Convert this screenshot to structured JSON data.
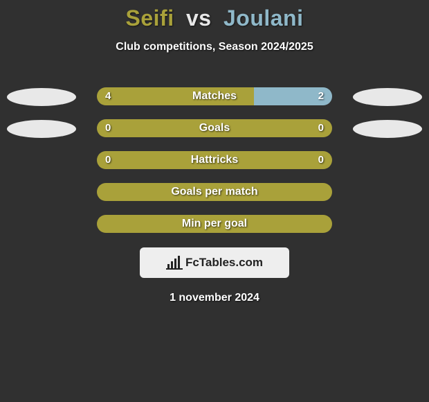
{
  "title": {
    "player1": "Seifi",
    "vs": "vs",
    "player2": "Joulani",
    "player1_color": "#a9a13a",
    "vs_color": "#e8e8e8",
    "player2_color": "#8fb8c9",
    "fontsize": 32
  },
  "subtitle": "Club competitions, Season 2024/2025",
  "background_color": "#303030",
  "ellipse_left_color": "#e8e8e8",
  "ellipse_right_color": "#e8e8e8",
  "rows": [
    {
      "label": "Matches",
      "left_value": "4",
      "right_value": "2",
      "left_num": 4,
      "right_num": 2,
      "left_color": "#a9a13a",
      "right_color": "#8fb8c9",
      "left_pct": 66.7,
      "right_pct": 33.3,
      "show_left_ellipse": true,
      "show_right_ellipse": true,
      "show_values": true
    },
    {
      "label": "Goals",
      "left_value": "0",
      "right_value": "0",
      "left_num": 0,
      "right_num": 0,
      "left_color": "#a9a13a",
      "right_color": "#a9a13a",
      "left_pct": 100,
      "right_pct": 0,
      "show_left_ellipse": true,
      "show_right_ellipse": true,
      "show_values": true
    },
    {
      "label": "Hattricks",
      "left_value": "0",
      "right_value": "0",
      "left_num": 0,
      "right_num": 0,
      "left_color": "#a9a13a",
      "right_color": "#a9a13a",
      "left_pct": 100,
      "right_pct": 0,
      "show_left_ellipse": false,
      "show_right_ellipse": false,
      "show_values": true
    },
    {
      "label": "Goals per match",
      "left_value": "",
      "right_value": "",
      "left_num": 0,
      "right_num": 0,
      "left_color": "#a9a13a",
      "right_color": "#a9a13a",
      "left_pct": 100,
      "right_pct": 0,
      "show_left_ellipse": false,
      "show_right_ellipse": false,
      "show_values": false
    },
    {
      "label": "Min per goal",
      "left_value": "",
      "right_value": "",
      "left_num": 0,
      "right_num": 0,
      "left_color": "#a9a13a",
      "right_color": "#a9a13a",
      "left_pct": 100,
      "right_pct": 0,
      "show_left_ellipse": false,
      "show_right_ellipse": false,
      "show_values": false
    }
  ],
  "badge": {
    "text": "FcTables.com",
    "background": "#eeeeee",
    "text_color": "#222222",
    "icon_color": "#222222"
  },
  "date": "1 november 2024"
}
